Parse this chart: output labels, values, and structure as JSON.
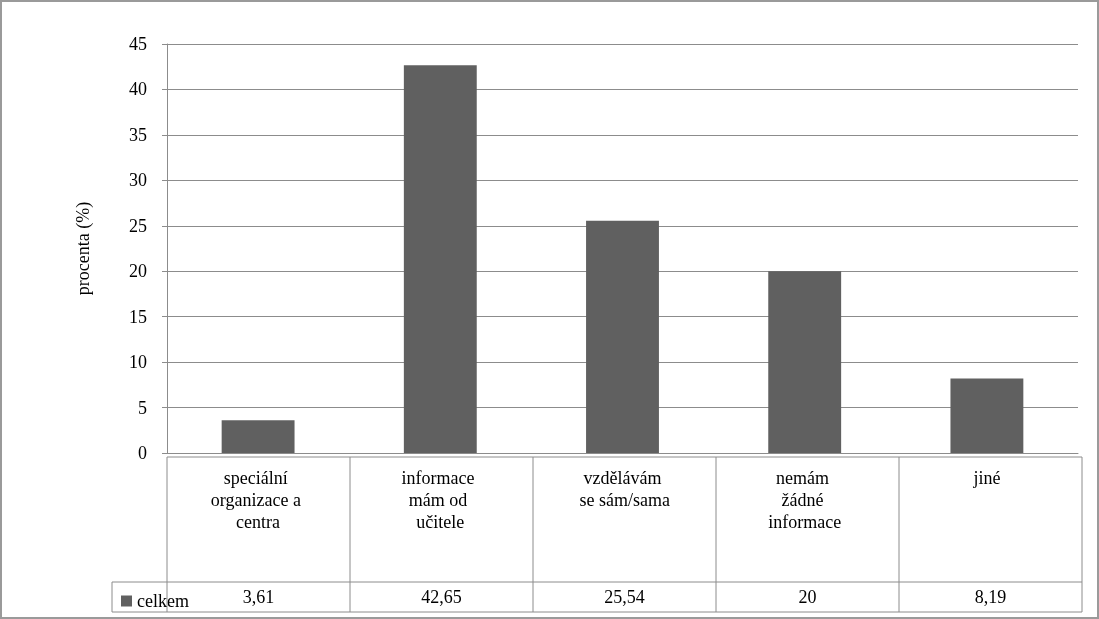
{
  "chart_data": {
    "type": "bar",
    "ylabel": "procenta (%)",
    "categories": [
      "speciální organizace a centra",
      "informace mám od učitele",
      "vzdělávám se sám/sama",
      "nemám žádné informace",
      "jiné"
    ],
    "series": [
      {
        "name": "celkem",
        "color": "#606060",
        "values": [
          3.61,
          42.65,
          25.54,
          20,
          8.19
        ],
        "value_labels": [
          "3,61",
          "42,65",
          "25,54",
          "20",
          "8,19"
        ]
      }
    ],
    "ylim": [
      0,
      45
    ],
    "yticks": [
      0,
      5,
      10,
      15,
      20,
      25,
      30,
      35,
      40,
      45
    ],
    "grid": "y",
    "legend": "bottom left"
  }
}
